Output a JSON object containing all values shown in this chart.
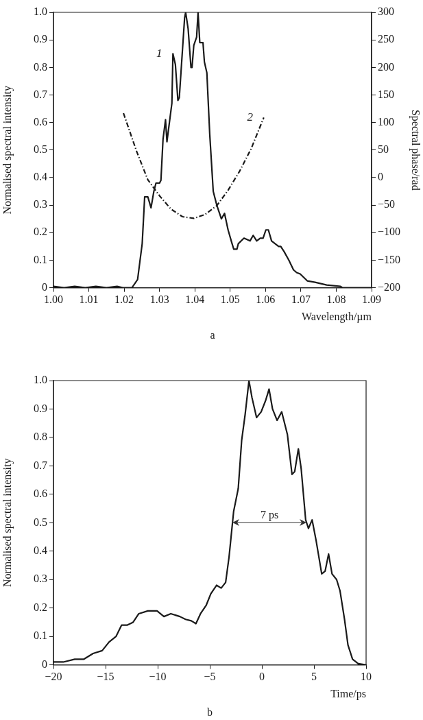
{
  "chart_data": [
    {
      "type": "line",
      "xlabel": "Wavelength/µm",
      "ylabel": "Normalised spectral intensity",
      "y2label": "Spectral phase/rad",
      "xlim": [
        1.0,
        1.09
      ],
      "xticks": [
        {
          "value": 1.0,
          "label": "1.00"
        },
        {
          "value": 1.01,
          "label": "1.01"
        },
        {
          "value": 1.02,
          "label": "1.02"
        },
        {
          "value": 1.03,
          "label": "1.03"
        },
        {
          "value": 1.04,
          "label": "1.04"
        },
        {
          "value": 1.05,
          "label": "1.05"
        },
        {
          "value": 1.06,
          "label": "1.06"
        },
        {
          "value": 1.07,
          "label": "1.07"
        },
        {
          "value": 1.08,
          "label": "1.08"
        },
        {
          "value": 1.09,
          "label": "1.09"
        }
      ],
      "ylim": [
        0,
        1
      ],
      "yticks": [
        0,
        0.1,
        0.2,
        0.3,
        0.4,
        0.5,
        0.6,
        0.7,
        0.8,
        0.9,
        {
          "value": 1,
          "label": "1.0"
        }
      ],
      "y2lim": [
        -200,
        300
      ],
      "y2ticks": [
        {
          "value": -200,
          "label": "−200"
        },
        {
          "value": -150,
          "label": "−150"
        },
        {
          "value": -100,
          "label": "−100"
        },
        {
          "value": -50,
          "label": "−50"
        },
        0,
        50,
        100,
        150,
        200,
        250,
        300
      ],
      "grid": false,
      "legend": false,
      "series": [
        {
          "name": "1",
          "color": "#1a1a1a",
          "line_style": "solid",
          "x": [
            1.0,
            1.003,
            1.006,
            1.009,
            1.012,
            1.015,
            1.018,
            1.0196,
            1.0222,
            1.0238,
            1.0245,
            1.0251,
            1.0258,
            1.0267,
            1.0276,
            1.0284,
            1.029,
            1.03,
            1.0304,
            1.031,
            1.0317,
            1.0321,
            1.0335,
            1.0338,
            1.0345,
            1.0352,
            1.0356,
            1.0371,
            1.0374,
            1.0381,
            1.0389,
            1.0392,
            1.0397,
            1.0405,
            1.0409,
            1.0414,
            1.0423,
            1.0427,
            1.0434,
            1.0442,
            1.0452,
            1.0462,
            1.0475,
            1.0484,
            1.0494,
            1.0503,
            1.051,
            1.0519,
            1.0523,
            1.0539,
            1.0556,
            1.0565,
            1.0575,
            1.0585,
            1.0593,
            1.0601,
            1.0608,
            1.0617,
            1.0637,
            1.0643,
            1.0653,
            1.0666,
            1.0679,
            1.0688,
            1.0698,
            1.0718,
            1.074,
            1.0773,
            1.0812,
            1.0818,
            1.09
          ],
          "values": [
            0.005,
            0.0,
            0.005,
            0.0,
            0.005,
            0.0,
            0.005,
            0.0,
            0.0,
            0.03,
            0.1,
            0.16,
            0.33,
            0.33,
            0.29,
            0.35,
            0.38,
            0.38,
            0.39,
            0.54,
            0.61,
            0.53,
            0.67,
            0.85,
            0.81,
            0.68,
            0.69,
            0.98,
            1.0,
            0.94,
            0.8,
            0.8,
            0.88,
            0.91,
            1.0,
            0.89,
            0.89,
            0.82,
            0.78,
            0.56,
            0.35,
            0.3,
            0.25,
            0.27,
            0.21,
            0.17,
            0.14,
            0.14,
            0.16,
            0.18,
            0.17,
            0.19,
            0.17,
            0.18,
            0.18,
            0.21,
            0.21,
            0.17,
            0.15,
            0.15,
            0.13,
            0.1,
            0.065,
            0.055,
            0.05,
            0.025,
            0.02,
            0.01,
            0.005,
            0.0,
            0.0
          ]
        },
        {
          "name": "2",
          "color": "#1a1a1a",
          "line_style": "dashed",
          "axis": "y2",
          "x": [
            1.0198,
            1.0235,
            1.0267,
            1.03,
            1.0332,
            1.0365,
            1.0397,
            1.0429,
            1.0462,
            1.0494,
            1.0527,
            1.0559,
            1.0595
          ],
          "values": [
            117,
            48,
            -4,
            -33,
            -57,
            -71,
            -74,
            -67,
            -51,
            -23,
            12,
            52,
            109
          ]
        }
      ],
      "annotations": [
        "a"
      ]
    },
    {
      "type": "line",
      "xlabel": "Time/ps",
      "ylabel": "Normalised spectral intensity",
      "xlim": [
        -20,
        10
      ],
      "xticks": [
        {
          "value": -20,
          "label": "−20"
        },
        {
          "value": -15,
          "label": "−15"
        },
        {
          "value": -10,
          "label": "−10"
        },
        {
          "value": -5,
          "label": "−5"
        },
        0,
        5,
        10
      ],
      "ylim": [
        0,
        1
      ],
      "yticks": [
        0,
        0.1,
        0.2,
        0.3,
        0.4,
        0.5,
        0.6,
        0.7,
        0.8,
        0.9,
        {
          "value": 1,
          "label": "1.0"
        }
      ],
      "grid": false,
      "legend": false,
      "series": [
        {
          "color": "#1a1a1a",
          "line_style": "solid",
          "x": [
            -20,
            -19.06,
            -17.96,
            -17.08,
            -16.2,
            -15.33,
            -14.67,
            -14.0,
            -13.46,
            -12.91,
            -12.36,
            -11.81,
            -10.94,
            -10.06,
            -9.4,
            -8.74,
            -7.87,
            -7.32,
            -6.77,
            -6.33,
            -5.89,
            -5.34,
            -4.9,
            -4.35,
            -3.91,
            -3.48,
            -3.15,
            -2.71,
            -2.27,
            -1.94,
            -1.61,
            -1.24,
            -0.95,
            -0.51,
            -0.07,
            0.36,
            0.69,
            1.02,
            1.46,
            1.9,
            2.45,
            2.89,
            3.15,
            3.5,
            3.77,
            4.2,
            4.47,
            4.82,
            5.19,
            5.74,
            6.07,
            6.4,
            6.73,
            7.17,
            7.5,
            7.93,
            8.26,
            8.7,
            9.25,
            10
          ],
          "values": [
            0.01,
            0.01,
            0.02,
            0.02,
            0.04,
            0.05,
            0.08,
            0.1,
            0.14,
            0.14,
            0.15,
            0.18,
            0.19,
            0.19,
            0.17,
            0.18,
            0.17,
            0.16,
            0.155,
            0.145,
            0.18,
            0.21,
            0.25,
            0.28,
            0.27,
            0.29,
            0.38,
            0.54,
            0.62,
            0.79,
            0.88,
            1.0,
            0.94,
            0.87,
            0.89,
            0.93,
            0.97,
            0.9,
            0.86,
            0.89,
            0.81,
            0.67,
            0.68,
            0.76,
            0.69,
            0.51,
            0.48,
            0.51,
            0.44,
            0.32,
            0.33,
            0.39,
            0.32,
            0.3,
            0.26,
            0.16,
            0.07,
            0.02,
            0.004,
            0
          ]
        }
      ],
      "annotations": [
        "7 ps",
        "b"
      ]
    }
  ]
}
